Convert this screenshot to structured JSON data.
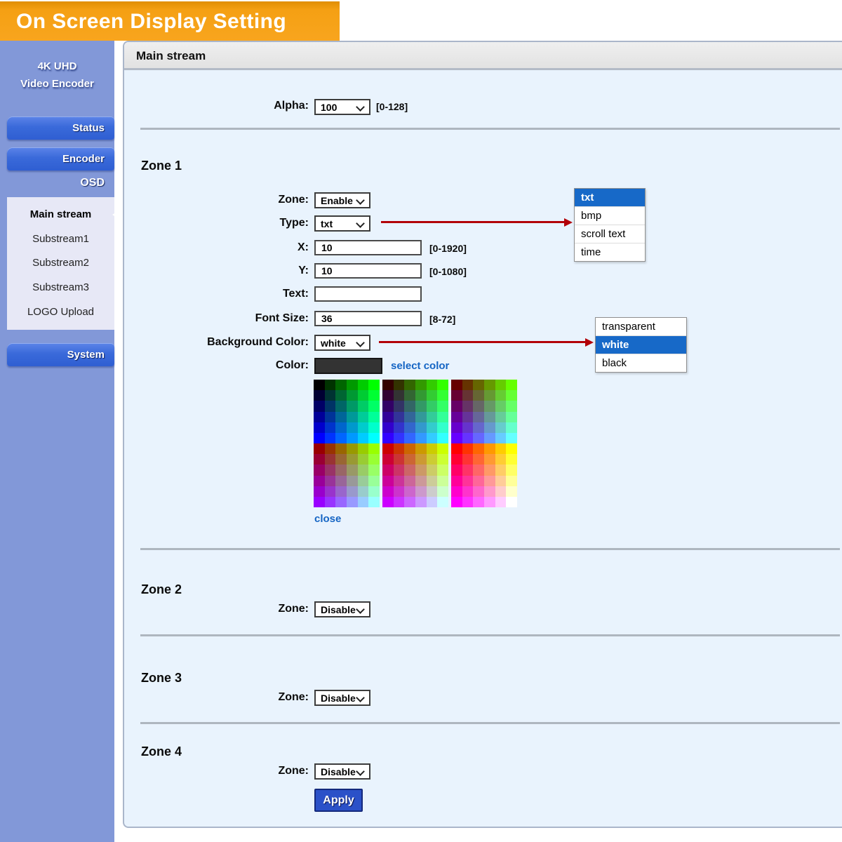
{
  "header": {
    "title": "On Screen Display Setting"
  },
  "sidebar": {
    "title_line1": "4K UHD",
    "title_line2": "Video Encoder",
    "status_button": "Status",
    "encoder_button": "Encoder",
    "osd_label": "OSD",
    "submenu": [
      {
        "label": "Main stream",
        "active": true
      },
      {
        "label": "Substream1",
        "active": false
      },
      {
        "label": "Substream2",
        "active": false
      },
      {
        "label": "Substream3",
        "active": false
      },
      {
        "label": "LOGO Upload",
        "active": false
      }
    ],
    "system_button": "System"
  },
  "main": {
    "panel_title": "Main stream",
    "alpha": {
      "label": "Alpha:",
      "value": "100",
      "range_hint": "[0-128]"
    },
    "zone1": {
      "heading": "Zone 1",
      "zone": {
        "label": "Zone:",
        "value": "Enable"
      },
      "type": {
        "label": "Type:",
        "value": "txt"
      },
      "x": {
        "label": "X:",
        "value": "10",
        "range_hint": "[0-1920]"
      },
      "y": {
        "label": "Y:",
        "value": "10",
        "range_hint": "[0-1080]"
      },
      "text": {
        "label": "Text:",
        "value": ""
      },
      "font_size": {
        "label": "Font Size:",
        "value": "36",
        "range_hint": "[8-72]"
      },
      "background_color": {
        "label": "Background Color:",
        "value": "white"
      },
      "color": {
        "label": "Color:",
        "swatch_color": "#333333",
        "select_color_link": "select color"
      },
      "close_link": "close"
    },
    "type_dropdown": {
      "items": [
        "txt",
        "bmp",
        "scroll text",
        "time"
      ],
      "selected": "txt"
    },
    "background_color_dropdown": {
      "items": [
        "transparent",
        "white",
        "black"
      ],
      "selected": "white"
    },
    "zone2": {
      "heading": "Zone 2",
      "zone_label": "Zone:",
      "zone_value": "Disable"
    },
    "zone3": {
      "heading": "Zone 3",
      "zone_label": "Zone:",
      "zone_value": "Disable"
    },
    "zone4": {
      "heading": "Zone 4",
      "zone_label": "Zone:",
      "zone_value": "Disable"
    },
    "apply_button": "Apply"
  },
  "color_palette": {
    "levels": [
      "00",
      "33",
      "66",
      "99",
      "cc",
      "ff"
    ],
    "rows": 12,
    "columns_per_block": 6,
    "blocks": 3
  },
  "colors": {
    "banner_orange": "#f5a013",
    "sidebar_blue": "#8298d8",
    "button_blue": "#3a6ada",
    "selection_blue": "#1769c8",
    "arrow_red": "#b20008",
    "link_blue": "#1565c4",
    "apply_blue": "#2b51c8",
    "panel_background": "#e9f3fd"
  }
}
